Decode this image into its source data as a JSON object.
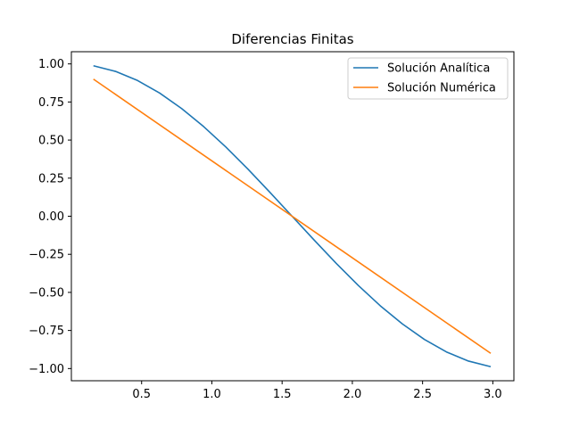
{
  "chart_data": {
    "type": "line",
    "title": "Diferencias Finitas",
    "xlabel": "",
    "ylabel": "",
    "xlim": [
      0.0,
      3.15
    ],
    "ylim": [
      -1.08,
      1.08
    ],
    "x_ticks": [
      0.5,
      1.0,
      1.5,
      2.0,
      2.5,
      3.0
    ],
    "x_tick_labels": [
      "0.5",
      "1.0",
      "1.5",
      "2.0",
      "2.5",
      "3.0"
    ],
    "y_ticks": [
      1.0,
      0.75,
      0.5,
      0.25,
      0.0,
      -0.25,
      -0.5,
      -0.75,
      -1.0
    ],
    "y_tick_labels": [
      "1.00",
      "0.75",
      "0.50",
      "0.25",
      "0.00",
      "−0.25",
      "−0.50",
      "−0.75",
      "−1.00"
    ],
    "grid": false,
    "legend_position": "top-right",
    "series": [
      {
        "name": "Solución Analítica",
        "color": "#1f77b4",
        "x": [
          0.157,
          0.314,
          0.471,
          0.628,
          0.785,
          0.942,
          1.1,
          1.257,
          1.414,
          1.571,
          1.728,
          1.885,
          2.042,
          2.199,
          2.356,
          2.513,
          2.67,
          2.827,
          2.985
        ],
        "y": [
          0.988,
          0.951,
          0.891,
          0.809,
          0.707,
          0.588,
          0.454,
          0.309,
          0.156,
          0.0,
          -0.156,
          -0.309,
          -0.454,
          -0.588,
          -0.707,
          -0.809,
          -0.891,
          -0.951,
          -0.988
        ]
      },
      {
        "name": "Solución Numérica",
        "color": "#ff7f0e",
        "x": [
          0.157,
          2.985
        ],
        "y": [
          0.9,
          -0.9
        ]
      }
    ]
  }
}
